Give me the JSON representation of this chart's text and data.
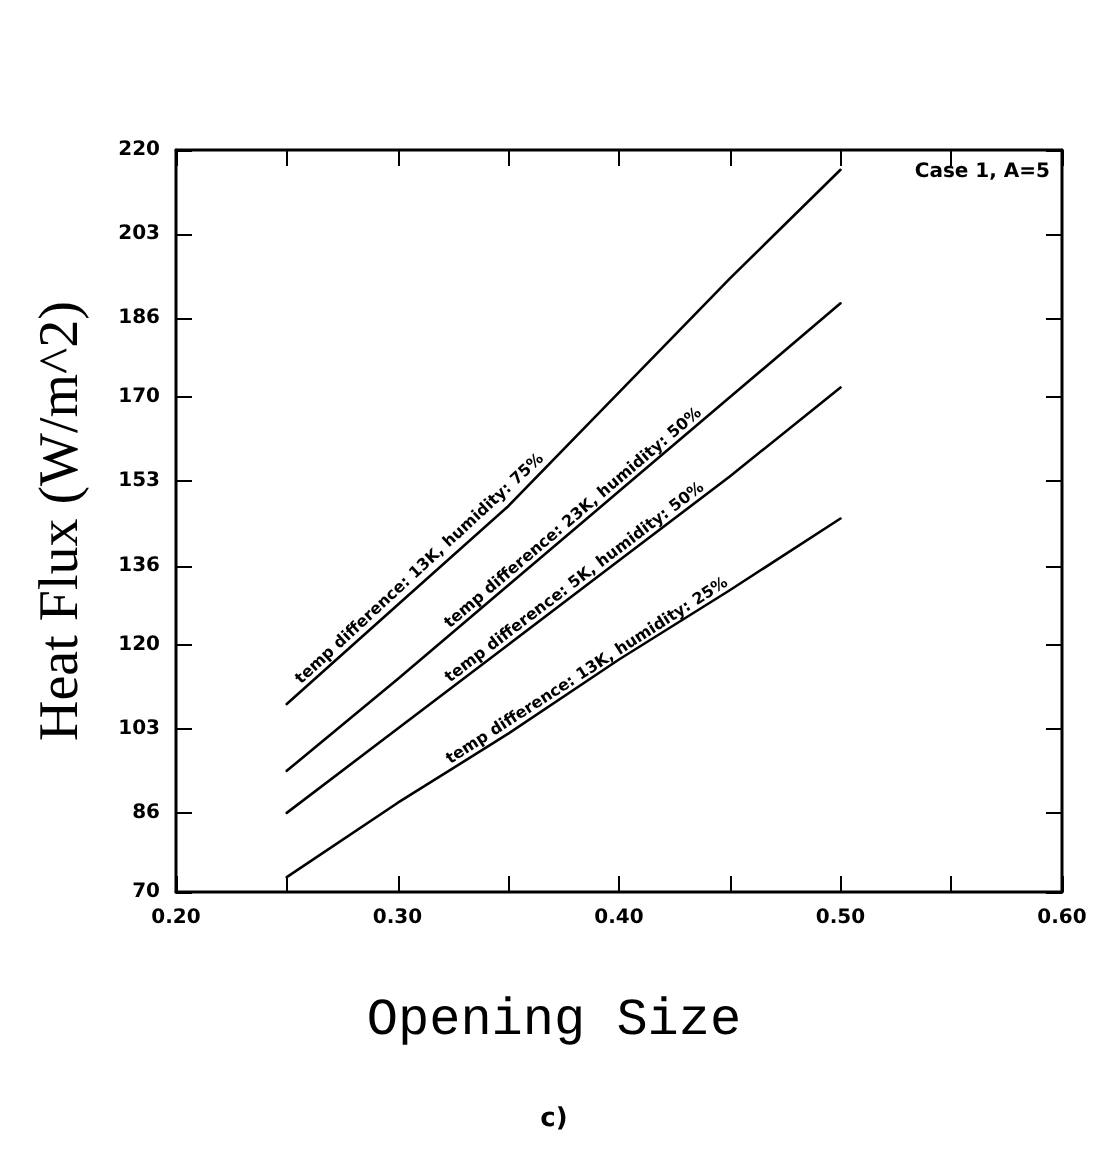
{
  "chart_data": {
    "type": "line",
    "xlabel": "Opening Size",
    "ylabel": "Heat Flux (W/m^2)",
    "annotations": [
      "Case 1, A=5",
      "c)"
    ],
    "x": [
      0.25,
      0.3,
      0.35,
      0.4,
      0.45,
      0.5
    ],
    "series": [
      {
        "name": "temp difference: 13K, humidity: 75%",
        "color": "#000000",
        "values": [
          108,
          128,
          148,
          171,
          194,
          216
        ]
      },
      {
        "name": "temp difference: 23K, humidity: 50%",
        "color": "#000000",
        "values": [
          94.5,
          113,
          132,
          151,
          170,
          189
        ]
      },
      {
        "name": "temp difference: 5K, humidity: 50%",
        "color": "#000000",
        "values": [
          86,
          103,
          120,
          137,
          154,
          172
        ]
      },
      {
        "name": "temp difference: 13K, humidity: 25%",
        "color": "#000000",
        "values": [
          73,
          88,
          102,
          117,
          131,
          145.5
        ]
      }
    ],
    "xlim": [
      0.2,
      0.6
    ],
    "xticks": [
      {
        "value": 0.2,
        "label": "0.20"
      },
      {
        "value": 0.25,
        "label": null
      },
      {
        "value": 0.3,
        "label": "0.30"
      },
      {
        "value": 0.35,
        "label": null
      },
      {
        "value": 0.4,
        "label": "0.40"
      },
      {
        "value": 0.45,
        "label": null
      },
      {
        "value": 0.5,
        "label": "0.50"
      },
      {
        "value": 0.55,
        "label": null
      },
      {
        "value": 0.6,
        "label": "0.60"
      }
    ],
    "ylim": [
      70,
      220
    ],
    "yticks": [
      70,
      86,
      103,
      120,
      136,
      153,
      170,
      186,
      203,
      220
    ],
    "grid": false,
    "legend": false,
    "marker": "none",
    "line_style": "solid"
  }
}
